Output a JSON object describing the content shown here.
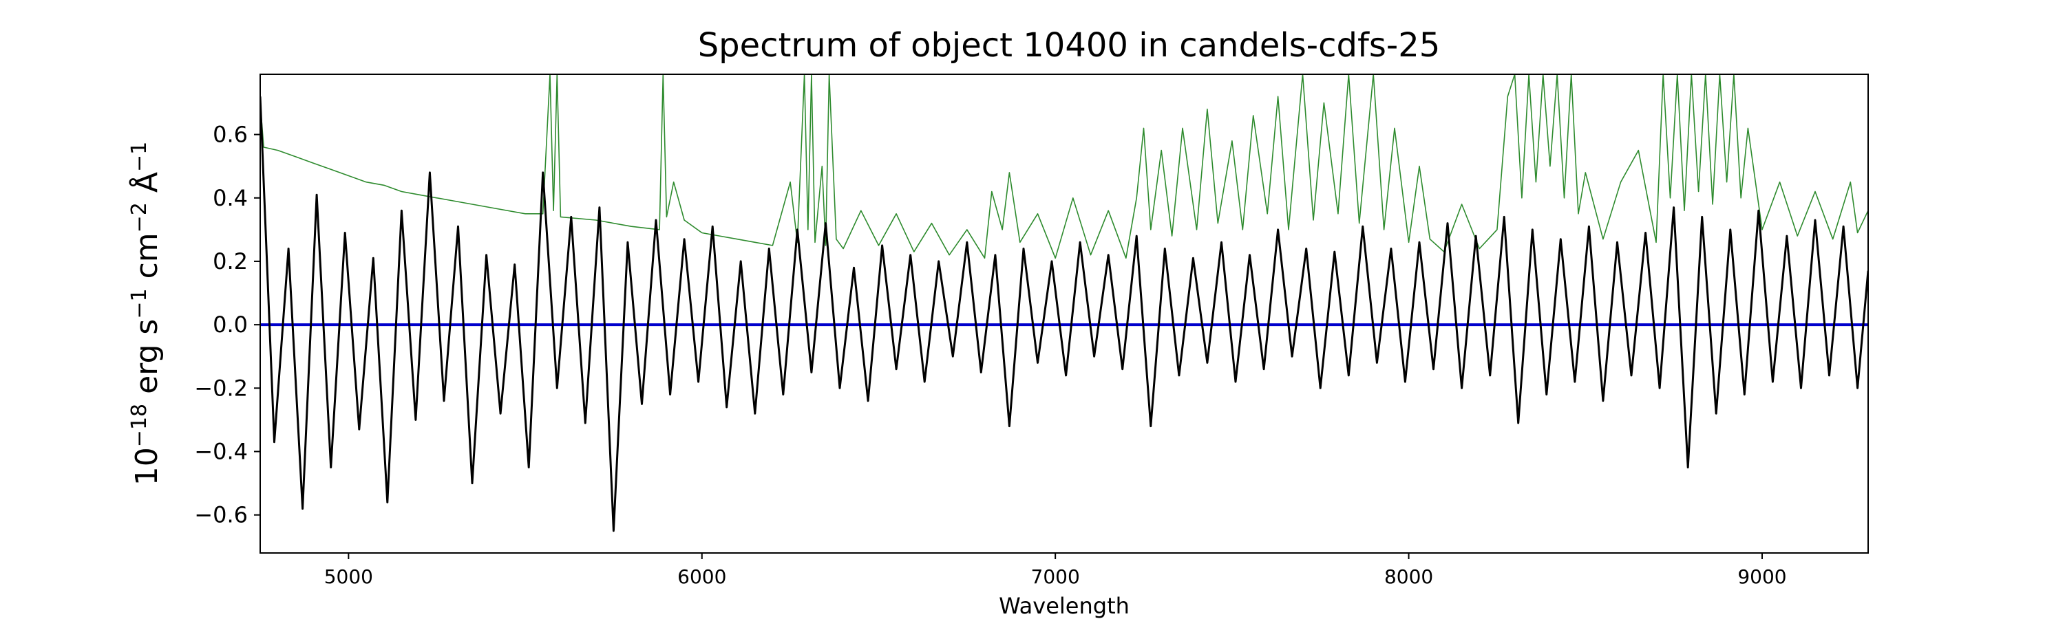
{
  "chart_data": {
    "type": "line",
    "title": "Spectrum of object 10400 in candels-cdfs-25",
    "xlabel": "Wavelength",
    "ylabel": {
      "prefix": "10",
      "exp1": "−18",
      "part2": " erg s",
      "exp2": "−1",
      "part3": " cm",
      "exp3": "−2",
      "part4": " Å",
      "exp4": "−1"
    },
    "xlim": [
      4750,
      9300
    ],
    "ylim": [
      -0.72,
      0.79
    ],
    "x_ticks": [
      5000,
      6000,
      7000,
      8000,
      9000
    ],
    "y_ticks": [
      -0.6,
      -0.4,
      -0.2,
      0.0,
      0.2,
      0.4,
      0.6
    ],
    "grid": false,
    "legend": "none",
    "series": [
      {
        "color": "#000000",
        "role": "observed flux",
        "x": [
          4750,
          4790,
          4830,
          4870,
          4910,
          4950,
          4990,
          5030,
          5070,
          5110,
          5150,
          5190,
          5230,
          5270,
          5310,
          5350,
          5390,
          5430,
          5470,
          5510,
          5550,
          5590,
          5630,
          5670,
          5710,
          5750,
          5790,
          5830,
          5870,
          5910,
          5950,
          5990,
          6030,
          6070,
          6110,
          6150,
          6190,
          6230,
          6270,
          6310,
          6350,
          6390,
          6430,
          6470,
          6510,
          6550,
          6590,
          6630,
          6670,
          6710,
          6750,
          6790,
          6830,
          6870,
          6910,
          6950,
          6990,
          7030,
          7070,
          7110,
          7150,
          7190,
          7230,
          7270,
          7310,
          7350,
          7390,
          7430,
          7470,
          7510,
          7550,
          7590,
          7630,
          7670,
          7710,
          7750,
          7790,
          7830,
          7870,
          7910,
          7950,
          7990,
          8030,
          8070,
          8110,
          8150,
          8190,
          8230,
          8270,
          8310,
          8350,
          8390,
          8430,
          8470,
          8510,
          8550,
          8590,
          8630,
          8670,
          8710,
          8750,
          8790,
          8830,
          8870,
          8910,
          8950,
          8990,
          9030,
          9070,
          9110,
          9150,
          9190,
          9230,
          9270,
          9300
        ],
        "y": [
          0.72,
          -0.37,
          0.24,
          -0.58,
          0.41,
          -0.45,
          0.29,
          -0.33,
          0.21,
          -0.56,
          0.36,
          -0.3,
          0.48,
          -0.24,
          0.31,
          -0.5,
          0.22,
          -0.28,
          0.19,
          -0.45,
          0.48,
          -0.2,
          0.34,
          -0.31,
          0.37,
          -0.65,
          0.26,
          -0.25,
          0.33,
          -0.22,
          0.27,
          -0.18,
          0.31,
          -0.26,
          0.2,
          -0.28,
          0.24,
          -0.22,
          0.3,
          -0.15,
          0.32,
          -0.2,
          0.18,
          -0.24,
          0.25,
          -0.14,
          0.22,
          -0.18,
          0.2,
          -0.1,
          0.26,
          -0.15,
          0.22,
          -0.32,
          0.24,
          -0.12,
          0.2,
          -0.16,
          0.26,
          -0.1,
          0.22,
          -0.14,
          0.28,
          -0.32,
          0.24,
          -0.16,
          0.21,
          -0.12,
          0.26,
          -0.18,
          0.22,
          -0.14,
          0.3,
          -0.1,
          0.24,
          -0.2,
          0.23,
          -0.16,
          0.31,
          -0.12,
          0.24,
          -0.18,
          0.26,
          -0.14,
          0.32,
          -0.2,
          0.28,
          -0.16,
          0.34,
          -0.31,
          0.3,
          -0.22,
          0.27,
          -0.18,
          0.31,
          -0.24,
          0.26,
          -0.16,
          0.29,
          -0.2,
          0.37,
          -0.45,
          0.34,
          -0.28,
          0.3,
          -0.22,
          0.36,
          -0.18,
          0.28,
          -0.2,
          0.33,
          -0.16,
          0.31,
          -0.2,
          0.17
        ]
      },
      {
        "color": "#2e8b2e",
        "role": "model / continuum",
        "x": [
          4750,
          4760,
          4800,
          4850,
          4900,
          4950,
          5000,
          5050,
          5100,
          5150,
          5200,
          5300,
          5400,
          5500,
          5550,
          5570,
          5580,
          5590,
          5600,
          5700,
          5800,
          5880,
          5890,
          5900,
          5920,
          5950,
          6000,
          6050,
          6100,
          6150,
          6200,
          6250,
          6270,
          6290,
          6300,
          6310,
          6320,
          6340,
          6350,
          6360,
          6380,
          6400,
          6450,
          6500,
          6550,
          6600,
          6650,
          6700,
          6750,
          6800,
          6820,
          6850,
          6870,
          6900,
          6950,
          7000,
          7050,
          7100,
          7150,
          7200,
          7230,
          7250,
          7270,
          7300,
          7330,
          7360,
          7400,
          7430,
          7460,
          7500,
          7530,
          7560,
          7600,
          7630,
          7660,
          7700,
          7730,
          7760,
          7800,
          7830,
          7860,
          7900,
          7930,
          7960,
          8000,
          8030,
          8060,
          8100,
          8150,
          8200,
          8250,
          8280,
          8300,
          8320,
          8340,
          8360,
          8380,
          8400,
          8420,
          8440,
          8460,
          8480,
          8500,
          8550,
          8600,
          8650,
          8700,
          8720,
          8740,
          8760,
          8780,
          8800,
          8820,
          8840,
          8860,
          8880,
          8900,
          8920,
          8940,
          8960,
          9000,
          9050,
          9100,
          9150,
          9200,
          9250,
          9270,
          9300
        ],
        "y": [
          0.7,
          0.56,
          0.55,
          0.53,
          0.51,
          0.49,
          0.47,
          0.45,
          0.44,
          0.42,
          0.41,
          0.39,
          0.37,
          0.35,
          0.35,
          0.79,
          0.36,
          0.79,
          0.34,
          0.33,
          0.31,
          0.3,
          0.79,
          0.34,
          0.45,
          0.33,
          0.29,
          0.28,
          0.27,
          0.26,
          0.25,
          0.45,
          0.26,
          0.79,
          0.3,
          0.79,
          0.26,
          0.5,
          0.25,
          0.79,
          0.27,
          0.24,
          0.36,
          0.25,
          0.35,
          0.23,
          0.32,
          0.22,
          0.3,
          0.21,
          0.42,
          0.3,
          0.48,
          0.26,
          0.35,
          0.21,
          0.4,
          0.22,
          0.36,
          0.21,
          0.4,
          0.62,
          0.3,
          0.55,
          0.28,
          0.62,
          0.3,
          0.68,
          0.32,
          0.58,
          0.3,
          0.66,
          0.35,
          0.72,
          0.3,
          0.79,
          0.33,
          0.7,
          0.35,
          0.79,
          0.32,
          0.79,
          0.3,
          0.62,
          0.26,
          0.5,
          0.27,
          0.23,
          0.38,
          0.24,
          0.3,
          0.72,
          0.79,
          0.4,
          0.79,
          0.45,
          0.79,
          0.5,
          0.79,
          0.4,
          0.79,
          0.35,
          0.48,
          0.27,
          0.45,
          0.55,
          0.26,
          0.79,
          0.4,
          0.79,
          0.36,
          0.79,
          0.42,
          0.79,
          0.38,
          0.79,
          0.45,
          0.79,
          0.4,
          0.62,
          0.3,
          0.45,
          0.28,
          0.42,
          0.27,
          0.45,
          0.29,
          0.36
        ]
      },
      {
        "color": "#0000cc",
        "role": "zero / error",
        "x": [
          4750,
          9300
        ],
        "y": [
          0.0,
          0.0
        ]
      }
    ]
  }
}
